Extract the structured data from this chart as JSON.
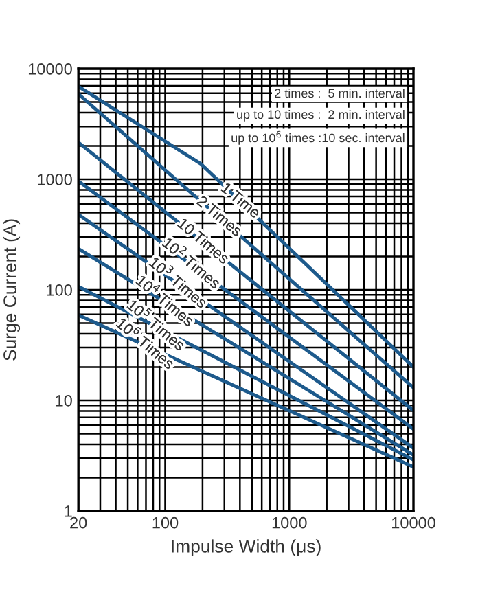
{
  "chart_data": {
    "type": "line",
    "xlabel": "Impulse Width (μs)",
    "ylabel": "Surge Current (A)",
    "log": "xy",
    "xlim": [
      20,
      10000
    ],
    "ylim": [
      1,
      10000
    ],
    "xticks": [
      20,
      100,
      1000,
      10000
    ],
    "yticks": [
      1,
      10,
      100,
      1000,
      10000
    ],
    "grid": true,
    "marker": "none",
    "line_style": "solid",
    "series": [
      {
        "color": "#1d5a8c",
        "x": [
          20,
          195,
          10000
        ],
        "values": [
          6900,
          1370,
          20
        ]
      },
      {
        "color": "#1d5a8c",
        "x": [
          20,
          10000
        ],
        "values": [
          5900,
          13
        ]
      },
      {
        "color": "#1d5a8c",
        "x": [
          20,
          10000
        ],
        "values": [
          2150,
          8.1
        ]
      },
      {
        "color": "#1d5a8c",
        "x": [
          20,
          10000
        ],
        "values": [
          960,
          5.5
        ]
      },
      {
        "color": "#1d5a8c",
        "x": [
          20,
          10000
        ],
        "values": [
          480,
          3.7
        ]
      },
      {
        "color": "#1d5a8c",
        "x": [
          20,
          10000
        ],
        "values": [
          235,
          3.2
        ]
      },
      {
        "color": "#1d5a8c",
        "x": [
          20,
          10000
        ],
        "values": [
          107,
          2.9
        ]
      },
      {
        "color": "#1d5a8c",
        "x": [
          20,
          10000
        ],
        "values": [
          59,
          2.5
        ]
      }
    ],
    "annotations": [
      {
        "text": "1 Time",
        "x": 400,
        "y": 634
      },
      {
        "text": "2 Times",
        "x": 270,
        "y": 456
      },
      {
        "text": "10 Times",
        "x": 200,
        "y": 272
      },
      {
        "text": "10$^{2}$ Times",
        "x": 160,
        "y": 171
      },
      {
        "text": "10$^{3}$ Times",
        "x": 125,
        "y": 114
      },
      {
        "text": "10$^{4}$ Times",
        "x": 98,
        "y": 78
      },
      {
        "text": "10$^{5}$ Times",
        "x": 83,
        "y": 47
      },
      {
        "text": "10$^{6}$ Times",
        "x": 68,
        "y": 32
      },
      "2 times :  5 min. interval",
      "up to 10 times :  2 min. interval",
      "up to 10$^{6}$ times :10 sec. interval"
    ]
  }
}
